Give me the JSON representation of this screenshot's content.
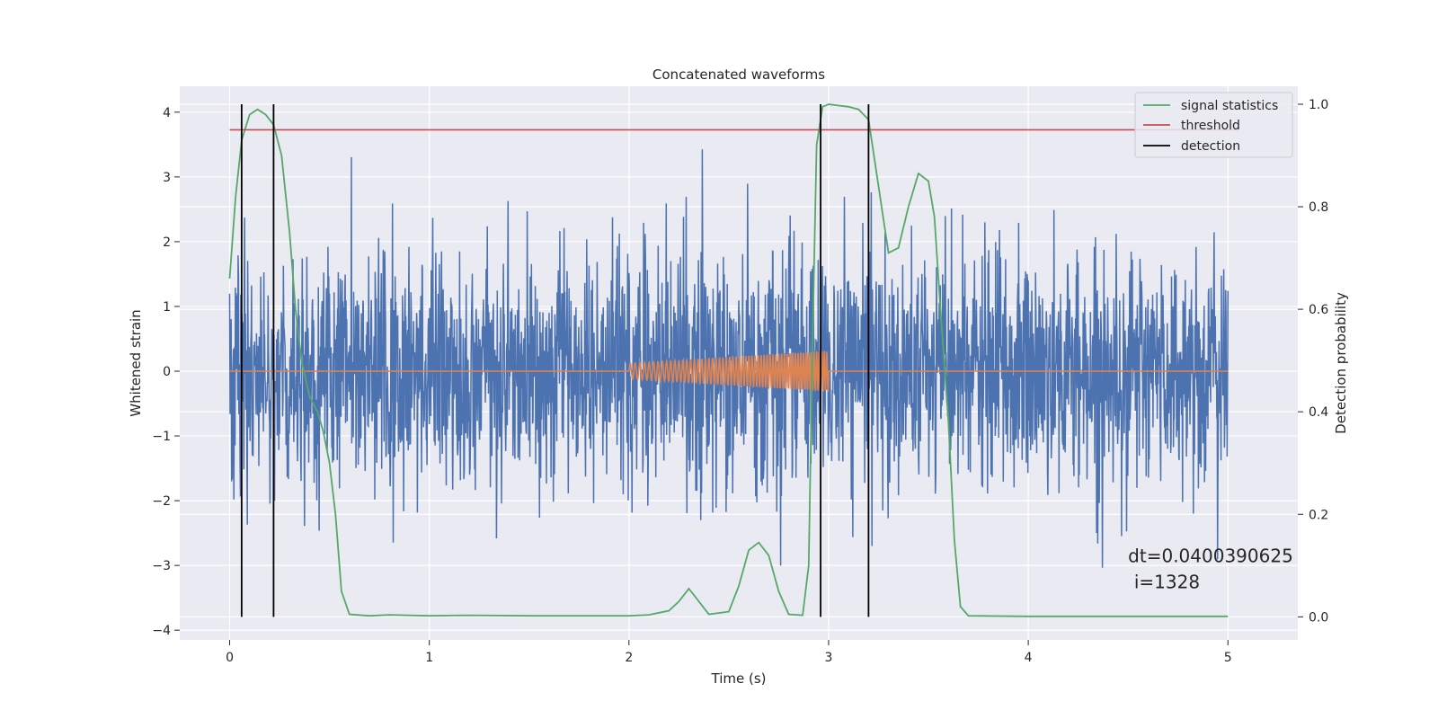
{
  "chart_data": {
    "type": "line",
    "title": "Concatenated waveforms",
    "xlabel": "Time (s)",
    "ylabel": "Whitened strain",
    "y2label": "Detection probability",
    "xlim": [
      -0.25,
      5.35
    ],
    "ylim": [
      -4.15,
      4.4
    ],
    "y2lim": [
      -0.045,
      1.035
    ],
    "xticks": [
      0,
      1,
      2,
      3,
      4,
      5
    ],
    "yticks": [
      -4,
      -3,
      -2,
      -1,
      0,
      1,
      2,
      3,
      4
    ],
    "y2ticks": [
      0.0,
      0.2,
      0.4,
      0.6,
      0.8,
      1.0
    ],
    "xtick_labels": [
      "0",
      "1",
      "2",
      "3",
      "4",
      "5"
    ],
    "ytick_labels": [
      "−4",
      "−3",
      "−2",
      "−1",
      "0",
      "1",
      "2",
      "3",
      "4"
    ],
    "y2tick_labels": [
      "0.0",
      "0.2",
      "0.4",
      "0.6",
      "0.8",
      "1.0"
    ],
    "grid": true,
    "legend_position": "top-right",
    "colors": {
      "background": "#eaeaf2",
      "grid": "#ffffff",
      "strain": "#4c72b0",
      "injection": "#dd8452",
      "signal_statistics": "#55a868",
      "threshold": "#c44e52",
      "detection": "#000000"
    },
    "legend": [
      "signal statistics",
      "threshold",
      "detection"
    ],
    "series": [
      {
        "name": "signal statistics",
        "axis": "right",
        "x": [
          0,
          0.03,
          0.06,
          0.1,
          0.14,
          0.18,
          0.22,
          0.26,
          0.3,
          0.33,
          0.36,
          0.4,
          0.44,
          0.47,
          0.5,
          0.53,
          0.56,
          0.6,
          0.7,
          0.8,
          1.0,
          1.2,
          1.5,
          2.0,
          2.1,
          2.2,
          2.25,
          2.3,
          2.35,
          2.4,
          2.5,
          2.55,
          2.6,
          2.65,
          2.7,
          2.75,
          2.8,
          2.87,
          2.9,
          2.92,
          2.94,
          2.97,
          3.0,
          3.1,
          3.15,
          3.2,
          3.25,
          3.3,
          3.35,
          3.4,
          3.45,
          3.5,
          3.53,
          3.56,
          3.6,
          3.63,
          3.66,
          3.7,
          4.0,
          5.0
        ],
        "y": [
          0.66,
          0.82,
          0.93,
          0.98,
          0.99,
          0.98,
          0.96,
          0.9,
          0.75,
          0.6,
          0.5,
          0.43,
          0.4,
          0.36,
          0.3,
          0.2,
          0.05,
          0.005,
          0.002,
          0.004,
          0.002,
          0.003,
          0.002,
          0.002,
          0.004,
          0.012,
          0.03,
          0.055,
          0.03,
          0.005,
          0.01,
          0.06,
          0.13,
          0.145,
          0.12,
          0.05,
          0.005,
          0.003,
          0.1,
          0.55,
          0.92,
          0.995,
          1.0,
          0.995,
          0.99,
          0.97,
          0.84,
          0.71,
          0.72,
          0.8,
          0.865,
          0.85,
          0.78,
          0.6,
          0.38,
          0.15,
          0.02,
          0.002,
          0.001,
          0.001
        ]
      },
      {
        "name": "threshold",
        "axis": "right",
        "x": [
          0,
          5.05
        ],
        "y": [
          0.95,
          0.95
        ]
      },
      {
        "name": "detection",
        "axis": "right",
        "x": [
          0.06,
          0.22,
          2.96,
          3.2
        ],
        "y_range": [
          0,
          1.0
        ]
      }
    ],
    "annotations": [
      {
        "text": "dt=0.0400390625",
        "x": 4.5,
        "y": -2.95
      },
      {
        "text": "i=1328",
        "x": 4.53,
        "y": -3.35
      }
    ]
  }
}
